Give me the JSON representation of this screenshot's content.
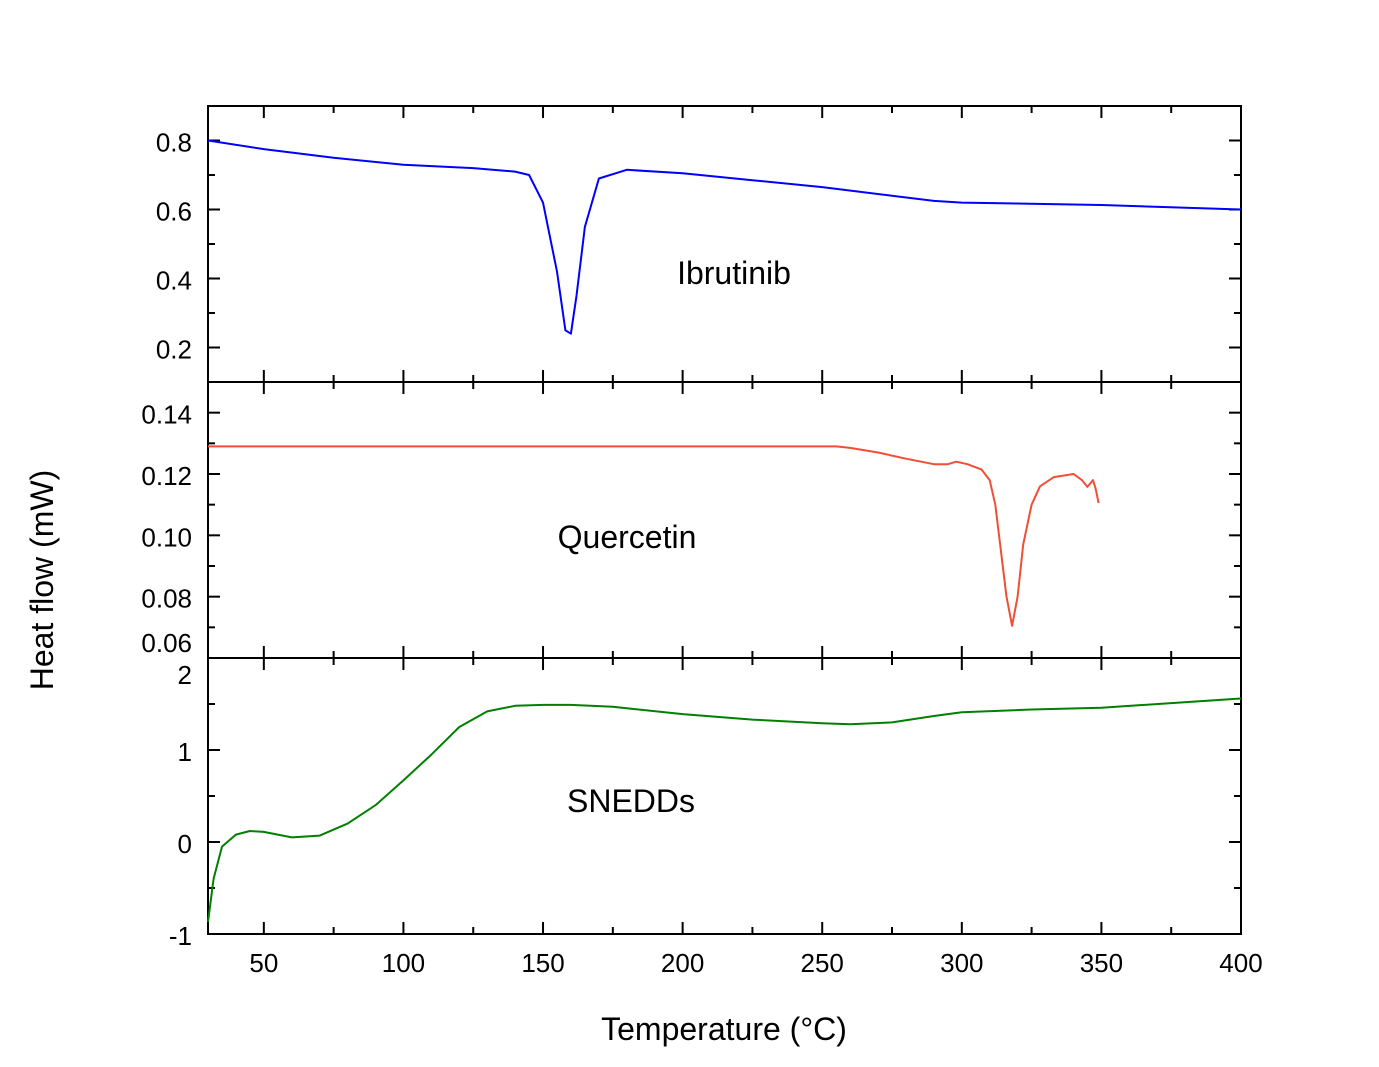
{
  "chart_data": {
    "type": "line",
    "xlabel": "Temperature (°C)",
    "xlabel_main": "Temperature (",
    "xlabel_deg": "o",
    "xlabel_unit": "C)",
    "ylabel": "Heat flow (mW)",
    "xlim": [
      30,
      400
    ],
    "xticks": [
      50,
      100,
      150,
      200,
      250,
      300,
      350,
      400
    ],
    "grid": false,
    "panels": [
      {
        "name": "Ibrutinib",
        "color": "#0000ff",
        "ylim": [
          0.1,
          0.9
        ],
        "yticks": [
          0.2,
          0.4,
          0.6,
          0.8
        ],
        "ytick_labels": [
          "0.2",
          "0.4",
          "0.6",
          "0.8"
        ],
        "x": [
          30,
          50,
          75,
          100,
          125,
          140,
          145,
          150,
          155,
          158,
          160,
          162,
          165,
          170,
          180,
          200,
          225,
          250,
          275,
          290,
          300,
          350,
          400
        ],
        "y": [
          0.8,
          0.775,
          0.75,
          0.73,
          0.72,
          0.71,
          0.7,
          0.62,
          0.42,
          0.25,
          0.24,
          0.35,
          0.55,
          0.69,
          0.715,
          0.705,
          0.685,
          0.665,
          0.64,
          0.625,
          0.62,
          0.613,
          0.6
        ]
      },
      {
        "name": "Quercetin",
        "color": "#f04e37",
        "ylim": [
          0.06,
          0.15
        ],
        "yticks": [
          0.06,
          0.08,
          0.1,
          0.12,
          0.14
        ],
        "ytick_labels": [
          "0.06",
          "0.08",
          "0.10",
          "0.12",
          "0.14"
        ],
        "x": [
          30,
          100,
          200,
          255,
          260,
          270,
          280,
          290,
          295,
          298,
          302,
          307,
          310,
          312,
          314,
          316,
          318,
          320,
          322,
          325,
          328,
          333,
          340,
          343,
          345,
          347,
          348,
          349
        ],
        "y": [
          0.129,
          0.129,
          0.129,
          0.129,
          0.1285,
          0.127,
          0.125,
          0.1232,
          0.1232,
          0.124,
          0.1232,
          0.1215,
          0.118,
          0.11,
          0.095,
          0.08,
          0.0705,
          0.08,
          0.097,
          0.11,
          0.116,
          0.119,
          0.12,
          0.118,
          0.1158,
          0.118,
          0.115,
          0.1105
        ]
      },
      {
        "name": "SNEDDs",
        "color": "#008000",
        "ylim": [
          -1,
          2
        ],
        "yticks": [
          -1,
          0,
          1,
          2
        ],
        "ytick_labels": [
          "-1",
          "0",
          "1",
          "2"
        ],
        "x": [
          30,
          32,
          35,
          40,
          45,
          50,
          60,
          70,
          80,
          90,
          100,
          110,
          120,
          130,
          140,
          150,
          160,
          175,
          200,
          225,
          250,
          260,
          275,
          290,
          300,
          325,
          350,
          375,
          400
        ],
        "y": [
          -0.87,
          -0.4,
          -0.05,
          0.08,
          0.12,
          0.11,
          0.05,
          0.07,
          0.2,
          0.4,
          0.67,
          0.95,
          1.25,
          1.42,
          1.48,
          1.49,
          1.49,
          1.47,
          1.39,
          1.33,
          1.29,
          1.28,
          1.3,
          1.37,
          1.41,
          1.44,
          1.46,
          1.51,
          1.56
        ]
      }
    ]
  }
}
